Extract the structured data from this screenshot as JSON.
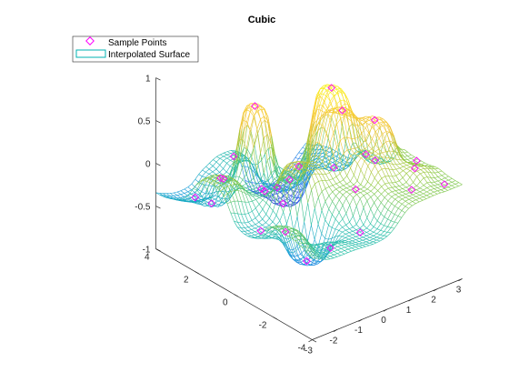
{
  "chart_data": {
    "type": "surface",
    "title": "Cubic",
    "xlabel": "",
    "ylabel": "",
    "zlabel": "",
    "xlim": [
      -3,
      3
    ],
    "ylim": [
      -4,
      4
    ],
    "zlim": [
      -1,
      1
    ],
    "x_ticks": [
      "-3",
      "-2",
      "-1",
      "0",
      "1",
      "2",
      "3"
    ],
    "y_ticks": [
      "-4",
      "-2",
      "0",
      "2",
      "4"
    ],
    "z_ticks": [
      "-1",
      "-0.5",
      "0",
      "0.5",
      "1"
    ],
    "legend": {
      "location": "top-left",
      "entries": [
        {
          "label": "Sample Points",
          "marker": "diamond",
          "color": "#ff00ff"
        },
        {
          "label": "Interpolated Surface",
          "style": "mesh",
          "color": "#00b3b3"
        }
      ]
    },
    "colormap": [
      "#3d26a8",
      "#2f67f4",
      "#159ed6",
      "#25bfa3",
      "#8ec83f",
      "#f1c43b",
      "#fad22d",
      "#f9fb15"
    ],
    "marker_color": "#ff00ff",
    "grid": false,
    "sample_points": [
      {
        "x": -2.6,
        "y": 1.2,
        "z": 0.15
      },
      {
        "x": -2.4,
        "y": -0.6,
        "z": -0.25
      },
      {
        "x": -2.1,
        "y": 2.3,
        "z": -0.35
      },
      {
        "x": -1.9,
        "y": 3.4,
        "z": -0.45
      },
      {
        "x": -1.5,
        "y": -1.8,
        "z": -0.55
      },
      {
        "x": -1.2,
        "y": 0.9,
        "z": -0.1
      },
      {
        "x": -1.0,
        "y": 3.1,
        "z": -0.3
      },
      {
        "x": -0.8,
        "y": -0.5,
        "z": 0.3
      },
      {
        "x": -0.6,
        "y": 2.0,
        "z": 0.65
      },
      {
        "x": -0.3,
        "y": -3.0,
        "z": -0.2
      },
      {
        "x": 0.0,
        "y": 1.0,
        "z": -0.15
      },
      {
        "x": 0.3,
        "y": -2.0,
        "z": 0.1
      },
      {
        "x": 0.6,
        "y": 2.4,
        "z": -0.5
      },
      {
        "x": 0.9,
        "y": 0.0,
        "z": 0.95
      },
      {
        "x": 1.1,
        "y": -1.5,
        "z": 0.35
      },
      {
        "x": 1.3,
        "y": 3.0,
        "z": -0.85
      },
      {
        "x": 1.6,
        "y": -3.2,
        "z": 0.1
      },
      {
        "x": 1.8,
        "y": 0.6,
        "z": 0.5
      },
      {
        "x": 2.0,
        "y": -0.8,
        "z": 0.55
      },
      {
        "x": 2.2,
        "y": -2.6,
        "z": 0.2
      },
      {
        "x": 2.4,
        "y": 1.8,
        "z": -0.4
      },
      {
        "x": 2.6,
        "y": -3.6,
        "z": 0.1
      },
      {
        "x": 2.8,
        "y": 0.2,
        "z": -0.15
      },
      {
        "x": -2.9,
        "y": -2.5,
        "z": 0.05
      },
      {
        "x": -0.2,
        "y": 3.6,
        "z": -0.2
      },
      {
        "x": 1.2,
        "y": 3.8,
        "z": -0.8
      },
      {
        "x": 2.9,
        "y": -1.8,
        "z": 0.1
      },
      {
        "x": -1.8,
        "y": -3.4,
        "z": -0.15
      }
    ]
  }
}
